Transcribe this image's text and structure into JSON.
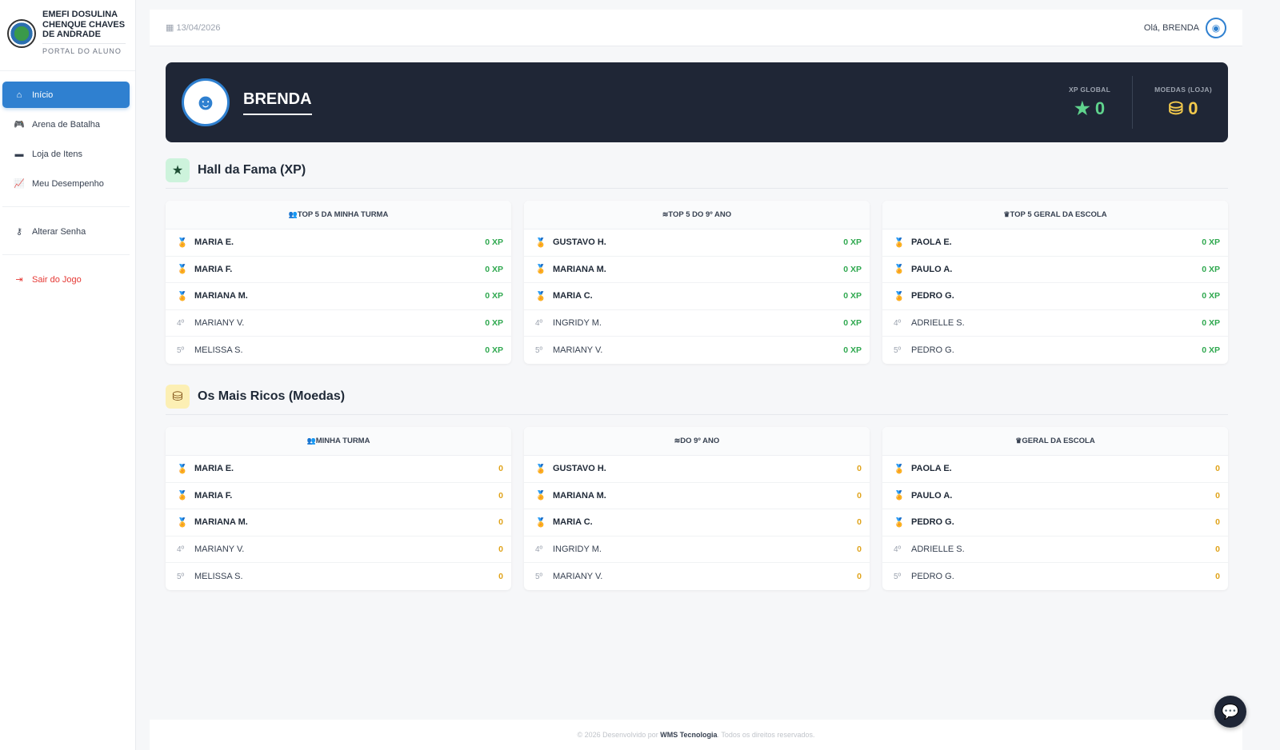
{
  "sidebar": {
    "school": "EMEFI DOSULINA CHENQUE CHAVES DE ANDRADE",
    "portal": "PORTAL DO ALUNO",
    "items": [
      {
        "label": "Início",
        "icon": "home-icon",
        "glyph": "⌂"
      },
      {
        "label": "Arena de Batalha",
        "icon": "gamepad-icon",
        "glyph": "🎮"
      },
      {
        "label": "Loja de Itens",
        "icon": "store-icon",
        "glyph": "▬"
      },
      {
        "label": "Meu Desempenho",
        "icon": "chart-line-icon",
        "glyph": "📈"
      }
    ],
    "change_password": "Alterar Senha",
    "logout": "Sair do Jogo"
  },
  "topbar": {
    "date": "13/04/2026",
    "greeting": "Olá, BRENDA"
  },
  "profile": {
    "name": "BRENDA",
    "xp_label": "XP GLOBAL",
    "xp": "0",
    "coins_label": "MOEDAS (LOJA)",
    "coins": "0"
  },
  "colors": {
    "accent": "#2f80d0",
    "xp": "#2fa84f",
    "coin": "#e0a31a",
    "banner": "#1f2636"
  },
  "hall": {
    "title": "Hall da Fama (XP)",
    "unit": " XP",
    "cards": [
      {
        "title": "TOP 5 DA MINHA TURMA",
        "icon": "users-icon",
        "glyph": "👥",
        "rows": [
          [
            "MARIA E.",
            "0"
          ],
          [
            "MARIA F.",
            "0"
          ],
          [
            "MARIANA M.",
            "0"
          ],
          [
            "MARIANY V.",
            "0"
          ],
          [
            "MELISSA S.",
            "0"
          ]
        ]
      },
      {
        "title": "TOP 5 DO 9º ANO",
        "icon": "layers-icon",
        "glyph": "≋",
        "rows": [
          [
            "GUSTAVO H.",
            "0"
          ],
          [
            "MARIANA M.",
            "0"
          ],
          [
            "MARIA C.",
            "0"
          ],
          [
            "INGRIDY M.",
            "0"
          ],
          [
            "MARIANY V.",
            "0"
          ]
        ]
      },
      {
        "title": "TOP 5 GERAL DA ESCOLA",
        "icon": "crown-icon",
        "glyph": "♛",
        "rows": [
          [
            "PAOLA E.",
            "0"
          ],
          [
            "PAULO A.",
            "0"
          ],
          [
            "PEDRO G.",
            "0"
          ],
          [
            "ADRIELLE S.",
            "0"
          ],
          [
            "PEDRO G.",
            "0"
          ]
        ]
      }
    ]
  },
  "rich": {
    "title": "Os Mais Ricos (Moedas)",
    "unit": "",
    "cards": [
      {
        "title": "MINHA TURMA",
        "icon": "users-icon",
        "glyph": "👥",
        "rows": [
          [
            "MARIA E.",
            "0"
          ],
          [
            "MARIA F.",
            "0"
          ],
          [
            "MARIANA M.",
            "0"
          ],
          [
            "MARIANY V.",
            "0"
          ],
          [
            "MELISSA S.",
            "0"
          ]
        ]
      },
      {
        "title": "DO 9º ANO",
        "icon": "layers-icon",
        "glyph": "≋",
        "rows": [
          [
            "GUSTAVO H.",
            "0"
          ],
          [
            "MARIANA M.",
            "0"
          ],
          [
            "MARIA C.",
            "0"
          ],
          [
            "INGRIDY M.",
            "0"
          ],
          [
            "MARIANY V.",
            "0"
          ]
        ]
      },
      {
        "title": "GERAL DA ESCOLA",
        "icon": "crown-icon",
        "glyph": "♛",
        "rows": [
          [
            "PAOLA E.",
            "0"
          ],
          [
            "PAULO A.",
            "0"
          ],
          [
            "PEDRO G.",
            "0"
          ],
          [
            "ADRIELLE S.",
            "0"
          ],
          [
            "PEDRO G.",
            "0"
          ]
        ]
      }
    ]
  },
  "ranks": [
    "4º",
    "5º"
  ],
  "footer": {
    "pre": "© 2026 Desenvolvido por ",
    "brand": "WMS Tecnologia",
    "post": ". Todos os direitos reservados."
  }
}
